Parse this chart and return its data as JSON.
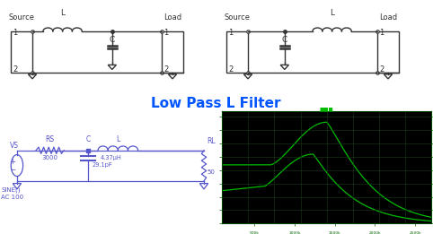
{
  "title": "Low Pass L Filter",
  "title_color": "#0055FF",
  "title_fontsize": 11,
  "bg_color": "#FFFFFF",
  "circuit_color": "#5555CC",
  "schematic_color": "#333333",
  "plot_bg": "#000000",
  "plot_grid_color": "#1a3a1a",
  "plot_line_color": "#00BB00",
  "circuit_labels": {
    "vs": "VS",
    "sine": "SINE()",
    "ac": "AC 100",
    "rs": "RS",
    "rs_val": "3000",
    "c_label": "C",
    "c_val": "29.1pF",
    "l_label": "L",
    "l_val": "4.37μH",
    "rl_label": "RL",
    "rl_val": "50"
  }
}
